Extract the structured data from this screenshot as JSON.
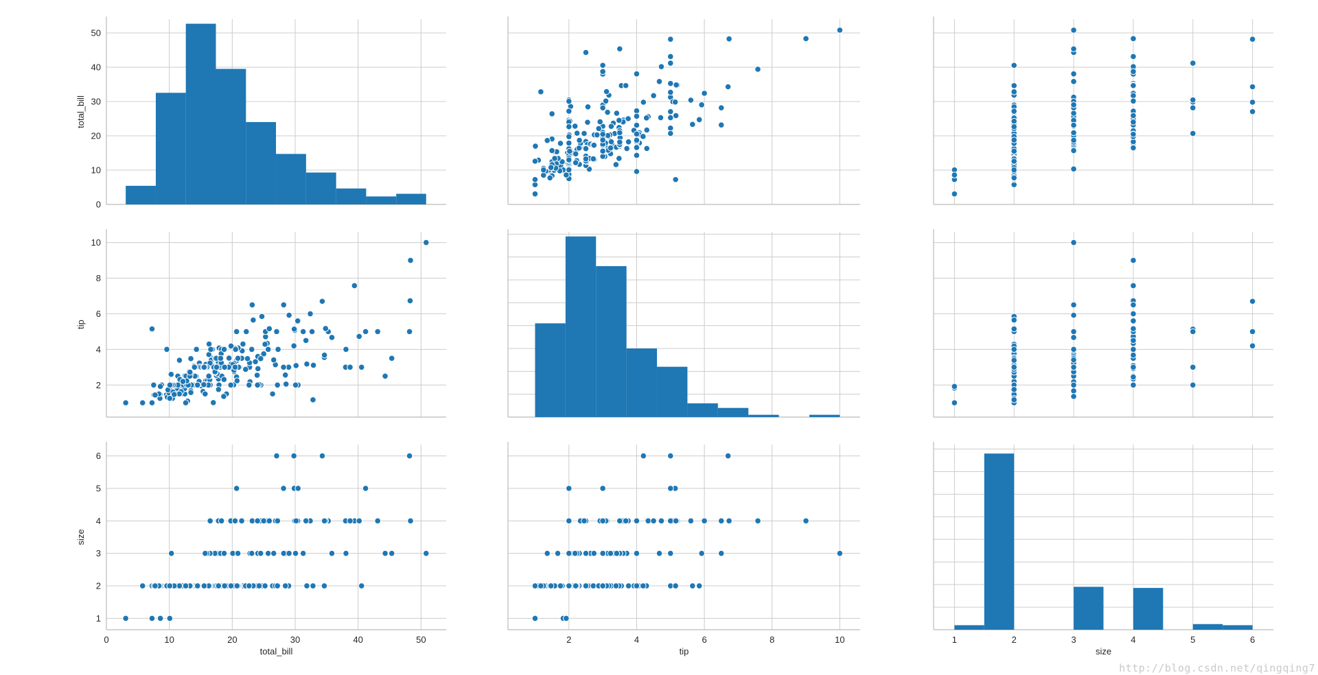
{
  "chart_data": {
    "type": "scatter",
    "layout": "pairplot",
    "colors": {
      "marker": "#1f77b4",
      "grid": "#cccccc",
      "spine": "#bbbbbb",
      "text": "#262626"
    },
    "variables": [
      {
        "name": "total_bill",
        "lim": [
          0,
          54
        ],
        "ticks": [
          0,
          10,
          20,
          30,
          40,
          50
        ]
      },
      {
        "name": "tip",
        "lim": [
          0.2,
          10.6
        ],
        "ticks": [
          2,
          4,
          6,
          8,
          10
        ]
      },
      {
        "name": "size",
        "lim": [
          0.65,
          6.35
        ],
        "ticks": [
          1,
          2,
          3,
          4,
          5,
          6
        ]
      }
    ],
    "histograms": {
      "total_bill": {
        "edges": [
          3.07,
          7.85,
          12.62,
          17.4,
          22.18,
          26.95,
          31.73,
          36.51,
          41.28,
          46.06,
          50.81
        ],
        "counts": [
          7,
          42,
          68,
          51,
          31,
          19,
          12,
          6,
          3,
          4
        ],
        "ymax": 69.7
      },
      "tip": {
        "edges": [
          1.0,
          1.9,
          2.8,
          3.7,
          4.6,
          5.5,
          6.4,
          7.3,
          8.2,
          9.1,
          10.0
        ],
        "counts": [
          41,
          79,
          66,
          30,
          22,
          6,
          4,
          1,
          0,
          1
        ],
        "ymax": 81
      },
      "size": {
        "edges": [
          1.0,
          1.5,
          2.0,
          2.5,
          3.0,
          3.5,
          4.0,
          4.5,
          5.0,
          5.5,
          6.0
        ],
        "counts": [
          4,
          156,
          0,
          0,
          38,
          0,
          37,
          0,
          5,
          4
        ],
        "ymax": 164
      }
    },
    "points": [
      [
        16.99,
        1.01,
        2
      ],
      [
        10.34,
        1.66,
        3
      ],
      [
        21.01,
        3.5,
        3
      ],
      [
        23.68,
        3.31,
        2
      ],
      [
        24.59,
        3.61,
        4
      ],
      [
        25.29,
        4.71,
        4
      ],
      [
        8.77,
        2.0,
        2
      ],
      [
        26.88,
        3.12,
        4
      ],
      [
        15.04,
        1.96,
        2
      ],
      [
        14.78,
        3.23,
        2
      ],
      [
        10.27,
        1.71,
        2
      ],
      [
        35.26,
        5.0,
        4
      ],
      [
        15.42,
        1.57,
        2
      ],
      [
        18.43,
        3.0,
        4
      ],
      [
        14.83,
        3.02,
        2
      ],
      [
        21.58,
        3.92,
        2
      ],
      [
        10.33,
        1.67,
        3
      ],
      [
        16.29,
        3.71,
        3
      ],
      [
        16.97,
        3.5,
        3
      ],
      [
        20.65,
        3.35,
        3
      ],
      [
        17.92,
        4.08,
        2
      ],
      [
        20.29,
        2.75,
        2
      ],
      [
        15.77,
        2.23,
        2
      ],
      [
        39.42,
        7.58,
        4
      ],
      [
        19.82,
        3.18,
        2
      ],
      [
        17.81,
        2.34,
        4
      ],
      [
        13.37,
        2.0,
        2
      ],
      [
        12.69,
        2.0,
        2
      ],
      [
        21.7,
        4.3,
        2
      ],
      [
        19.65,
        3.0,
        2
      ],
      [
        9.55,
        1.45,
        2
      ],
      [
        18.35,
        2.5,
        4
      ],
      [
        15.06,
        3.0,
        2
      ],
      [
        20.69,
        2.45,
        4
      ],
      [
        17.78,
        3.27,
        2
      ],
      [
        24.06,
        3.6,
        3
      ],
      [
        16.31,
        2.0,
        3
      ],
      [
        16.93,
        3.07,
        3
      ],
      [
        18.69,
        2.31,
        3
      ],
      [
        31.27,
        5.0,
        3
      ],
      [
        16.04,
        2.24,
        3
      ],
      [
        17.46,
        2.54,
        2
      ],
      [
        13.94,
        3.06,
        2
      ],
      [
        9.68,
        1.32,
        2
      ],
      [
        30.4,
        5.6,
        4
      ],
      [
        18.29,
        3.0,
        2
      ],
      [
        22.23,
        5.0,
        2
      ],
      [
        32.4,
        6.0,
        4
      ],
      [
        28.55,
        2.05,
        3
      ],
      [
        18.04,
        3.0,
        2
      ],
      [
        12.54,
        2.5,
        2
      ],
      [
        10.29,
        2.6,
        2
      ],
      [
        34.81,
        5.2,
        4
      ],
      [
        9.94,
        1.56,
        2
      ],
      [
        25.56,
        4.34,
        4
      ],
      [
        19.49,
        3.51,
        2
      ],
      [
        38.01,
        3.0,
        4
      ],
      [
        26.41,
        1.5,
        2
      ],
      [
        11.24,
        1.76,
        2
      ],
      [
        48.27,
        6.73,
        4
      ],
      [
        20.29,
        3.21,
        2
      ],
      [
        13.81,
        2.0,
        2
      ],
      [
        11.02,
        1.98,
        2
      ],
      [
        18.29,
        3.76,
        4
      ],
      [
        17.59,
        2.64,
        3
      ],
      [
        20.08,
        3.15,
        3
      ],
      [
        16.45,
        2.47,
        2
      ],
      [
        3.07,
        1.0,
        1
      ],
      [
        20.23,
        2.01,
        2
      ],
      [
        15.01,
        2.09,
        2
      ],
      [
        12.02,
        1.97,
        2
      ],
      [
        17.07,
        3.0,
        3
      ],
      [
        26.86,
        3.14,
        2
      ],
      [
        25.28,
        5.0,
        2
      ],
      [
        14.73,
        2.2,
        2
      ],
      [
        10.51,
        1.25,
        2
      ],
      [
        17.92,
        3.08,
        2
      ],
      [
        27.2,
        4.0,
        4
      ],
      [
        22.76,
        3.0,
        2
      ],
      [
        17.29,
        2.71,
        2
      ],
      [
        19.44,
        3.0,
        2
      ],
      [
        16.66,
        3.4,
        2
      ],
      [
        10.07,
        1.83,
        1
      ],
      [
        32.68,
        5.0,
        2
      ],
      [
        15.98,
        2.03,
        2
      ],
      [
        34.83,
        5.17,
        4
      ],
      [
        13.03,
        2.0,
        2
      ],
      [
        18.28,
        4.0,
        2
      ],
      [
        24.71,
        5.85,
        2
      ],
      [
        21.16,
        3.0,
        2
      ],
      [
        28.97,
        3.0,
        2
      ],
      [
        22.49,
        3.5,
        2
      ],
      [
        5.75,
        1.0,
        2
      ],
      [
        16.32,
        4.3,
        2
      ],
      [
        22.75,
        3.25,
        2
      ],
      [
        40.17,
        4.73,
        4
      ],
      [
        27.28,
        4.0,
        2
      ],
      [
        12.03,
        1.5,
        2
      ],
      [
        21.01,
        3.0,
        2
      ],
      [
        12.46,
        1.5,
        2
      ],
      [
        11.35,
        2.5,
        2
      ],
      [
        15.38,
        3.0,
        2
      ],
      [
        44.3,
        2.5,
        3
      ],
      [
        22.42,
        3.48,
        2
      ],
      [
        20.92,
        4.08,
        2
      ],
      [
        15.36,
        1.64,
        2
      ],
      [
        20.49,
        4.06,
        2
      ],
      [
        25.21,
        4.29,
        2
      ],
      [
        18.24,
        3.76,
        2
      ],
      [
        14.31,
        4.0,
        2
      ],
      [
        14.0,
        3.0,
        2
      ],
      [
        7.25,
        1.0,
        1
      ],
      [
        38.07,
        4.0,
        3
      ],
      [
        23.95,
        2.55,
        2
      ],
      [
        25.71,
        4.0,
        3
      ],
      [
        17.31,
        3.5,
        2
      ],
      [
        29.93,
        5.07,
        4
      ],
      [
        10.65,
        1.5,
        2
      ],
      [
        12.43,
        1.8,
        2
      ],
      [
        24.08,
        2.92,
        4
      ],
      [
        11.69,
        2.31,
        2
      ],
      [
        13.42,
        1.68,
        2
      ],
      [
        14.26,
        2.5,
        2
      ],
      [
        15.95,
        2.0,
        2
      ],
      [
        12.48,
        2.52,
        2
      ],
      [
        29.8,
        4.2,
        6
      ],
      [
        8.52,
        1.48,
        2
      ],
      [
        14.52,
        2.0,
        2
      ],
      [
        11.38,
        2.0,
        2
      ],
      [
        22.82,
        2.18,
        3
      ],
      [
        19.08,
        1.5,
        2
      ],
      [
        20.27,
        2.83,
        2
      ],
      [
        11.17,
        1.5,
        2
      ],
      [
        12.26,
        2.0,
        2
      ],
      [
        18.26,
        3.25,
        2
      ],
      [
        8.51,
        1.25,
        2
      ],
      [
        10.33,
        2.0,
        2
      ],
      [
        14.15,
        2.0,
        2
      ],
      [
        16.0,
        2.0,
        2
      ],
      [
        13.16,
        2.75,
        2
      ],
      [
        17.47,
        3.5,
        2
      ],
      [
        34.3,
        6.7,
        6
      ],
      [
        41.19,
        5.0,
        5
      ],
      [
        27.05,
        5.0,
        6
      ],
      [
        16.43,
        2.3,
        2
      ],
      [
        8.35,
        1.5,
        2
      ],
      [
        18.64,
        1.36,
        3
      ],
      [
        11.87,
        1.63,
        2
      ],
      [
        9.78,
        1.73,
        2
      ],
      [
        7.51,
        2.0,
        2
      ],
      [
        14.07,
        2.5,
        2
      ],
      [
        13.13,
        2.0,
        2
      ],
      [
        17.26,
        2.74,
        3
      ],
      [
        24.55,
        2.0,
        4
      ],
      [
        19.77,
        2.0,
        4
      ],
      [
        29.85,
        5.14,
        5
      ],
      [
        48.17,
        5.0,
        6
      ],
      [
        25.0,
        3.75,
        4
      ],
      [
        13.39,
        2.61,
        2
      ],
      [
        16.49,
        2.0,
        4
      ],
      [
        21.5,
        3.5,
        4
      ],
      [
        12.66,
        2.5,
        2
      ],
      [
        16.21,
        2.0,
        3
      ],
      [
        13.81,
        2.0,
        2
      ],
      [
        17.51,
        3.0,
        2
      ],
      [
        24.52,
        3.48,
        3
      ],
      [
        20.76,
        2.24,
        2
      ],
      [
        31.71,
        4.5,
        4
      ],
      [
        10.59,
        1.61,
        2
      ],
      [
        10.63,
        2.0,
        2
      ],
      [
        50.81,
        10.0,
        3
      ],
      [
        15.81,
        3.16,
        2
      ],
      [
        7.25,
        5.15,
        2
      ],
      [
        31.85,
        3.18,
        2
      ],
      [
        16.82,
        4.0,
        2
      ],
      [
        32.9,
        3.11,
        2
      ],
      [
        17.89,
        2.0,
        2
      ],
      [
        14.48,
        2.0,
        2
      ],
      [
        9.6,
        4.0,
        2
      ],
      [
        34.63,
        3.55,
        2
      ],
      [
        34.65,
        3.68,
        4
      ],
      [
        23.33,
        5.65,
        2
      ],
      [
        45.35,
        3.5,
        3
      ],
      [
        23.17,
        6.5,
        4
      ],
      [
        40.55,
        3.0,
        2
      ],
      [
        20.69,
        5.0,
        5
      ],
      [
        20.9,
        3.5,
        3
      ],
      [
        30.46,
        2.0,
        5
      ],
      [
        18.15,
        3.5,
        3
      ],
      [
        23.1,
        4.0,
        3
      ],
      [
        15.69,
        1.5,
        2
      ],
      [
        19.81,
        4.19,
        2
      ],
      [
        28.44,
        2.56,
        2
      ],
      [
        15.48,
        2.02,
        2
      ],
      [
        16.58,
        4.0,
        2
      ],
      [
        7.56,
        1.44,
        2
      ],
      [
        10.34,
        2.0,
        2
      ],
      [
        43.11,
        5.0,
        4
      ],
      [
        13.0,
        2.0,
        2
      ],
      [
        13.51,
        2.0,
        2
      ],
      [
        18.71,
        4.0,
        3
      ],
      [
        12.74,
        2.01,
        2
      ],
      [
        13.0,
        2.0,
        2
      ],
      [
        16.4,
        2.5,
        2
      ],
      [
        20.53,
        4.0,
        4
      ],
      [
        16.47,
        3.23,
        3
      ],
      [
        26.59,
        3.41,
        3
      ],
      [
        38.73,
        3.0,
        4
      ],
      [
        24.27,
        2.03,
        2
      ],
      [
        12.76,
        2.23,
        2
      ],
      [
        30.06,
        2.0,
        3
      ],
      [
        25.89,
        5.16,
        4
      ],
      [
        48.33,
        9.0,
        4
      ],
      [
        13.27,
        2.5,
        2
      ],
      [
        28.17,
        6.5,
        3
      ],
      [
        12.9,
        1.1,
        2
      ],
      [
        28.15,
        3.0,
        5
      ],
      [
        11.59,
        1.5,
        2
      ],
      [
        7.74,
        1.44,
        2
      ],
      [
        30.14,
        3.09,
        4
      ],
      [
        12.16,
        2.2,
        2
      ],
      [
        13.42,
        3.48,
        2
      ],
      [
        8.58,
        1.92,
        1
      ],
      [
        15.98,
        3.0,
        3
      ],
      [
        13.42,
        1.58,
        2
      ],
      [
        16.27,
        2.5,
        2
      ],
      [
        10.09,
        2.0,
        2
      ],
      [
        20.45,
        3.0,
        4
      ],
      [
        13.28,
        2.72,
        2
      ],
      [
        22.12,
        2.88,
        2
      ],
      [
        24.01,
        2.0,
        4
      ],
      [
        15.69,
        3.0,
        3
      ],
      [
        11.61,
        3.39,
        2
      ],
      [
        10.77,
        1.47,
        2
      ],
      [
        15.53,
        3.0,
        2
      ],
      [
        10.07,
        1.25,
        2
      ],
      [
        12.6,
        1.0,
        2
      ],
      [
        32.83,
        1.17,
        2
      ],
      [
        35.83,
        4.67,
        3
      ],
      [
        29.03,
        5.92,
        3
      ],
      [
        27.18,
        2.0,
        2
      ],
      [
        22.67,
        2.0,
        2
      ],
      [
        17.82,
        1.75,
        2
      ],
      [
        18.78,
        3.0,
        2
      ]
    ]
  }
}
